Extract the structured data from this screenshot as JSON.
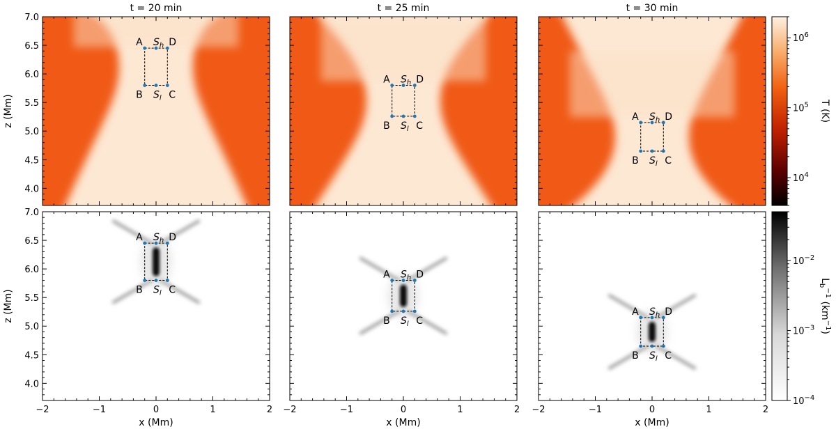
{
  "chart_data": {
    "type": "heatmap",
    "panels": [
      {
        "title": "t =  20 min",
        "field": "T",
        "region": {
          "A": [
            -0.2,
            6.45
          ],
          "B": [
            -0.2,
            5.8
          ],
          "C": [
            0.2,
            5.8
          ],
          "D": [
            0.2,
            6.45
          ],
          "Sh": [
            0.0,
            6.45
          ],
          "Sl": [
            0.0,
            5.8
          ]
        }
      },
      {
        "title": "t =  25 min",
        "field": "T",
        "region": {
          "A": [
            -0.2,
            5.8
          ],
          "B": [
            -0.2,
            5.26
          ],
          "C": [
            0.2,
            5.26
          ],
          "D": [
            0.2,
            5.8
          ],
          "Sh": [
            0.0,
            5.8
          ],
          "Sl": [
            0.0,
            5.26
          ]
        }
      },
      {
        "title": "t =  30 min",
        "field": "T",
        "region": {
          "A": [
            -0.2,
            5.15
          ],
          "B": [
            -0.2,
            4.65
          ],
          "C": [
            0.2,
            4.65
          ],
          "D": [
            0.2,
            5.15
          ],
          "Sh": [
            0.0,
            5.15
          ],
          "Sl": [
            0.0,
            4.65
          ]
        }
      },
      {
        "title": "",
        "field": "Lb",
        "region": {
          "A": [
            -0.2,
            6.45
          ],
          "B": [
            -0.2,
            5.8
          ],
          "C": [
            0.2,
            5.8
          ],
          "D": [
            0.2,
            6.45
          ],
          "Sh": [
            0.0,
            6.45
          ],
          "Sl": [
            0.0,
            5.8
          ]
        }
      },
      {
        "title": "",
        "field": "Lb",
        "region": {
          "A": [
            -0.2,
            5.8
          ],
          "B": [
            -0.2,
            5.26
          ],
          "C": [
            0.2,
            5.26
          ],
          "D": [
            0.2,
            5.8
          ],
          "Sh": [
            0.0,
            5.8
          ],
          "Sl": [
            0.0,
            5.26
          ]
        }
      },
      {
        "title": "",
        "field": "Lb",
        "region": {
          "A": [
            -0.2,
            5.15
          ],
          "B": [
            -0.2,
            4.65
          ],
          "C": [
            0.2,
            4.65
          ],
          "D": [
            0.2,
            5.15
          ],
          "Sh": [
            0.0,
            5.15
          ],
          "Sl": [
            0.0,
            4.65
          ]
        }
      }
    ],
    "point_labels": {
      "A": "A",
      "B": "B",
      "C": "C",
      "D": "D",
      "Sh_main": "S",
      "Sh_sub": "h",
      "Sl_main": "S",
      "Sl_sub": "l"
    },
    "xlabel": "x (Mm)",
    "ylabel": "z (Mm)",
    "xlim": [
      -2,
      2
    ],
    "ylim": [
      3.7,
      7.0
    ],
    "xticks": [
      -2,
      -1,
      0,
      1,
      2
    ],
    "xtick_labels": [
      "−2",
      "−1",
      "0",
      "1",
      "2"
    ],
    "yticks": [
      4.0,
      4.5,
      5.0,
      5.5,
      6.0,
      6.5,
      7.0
    ],
    "ytick_labels": [
      "4.0",
      "4.5",
      "5.0",
      "5.5",
      "6.0",
      "6.5",
      "7.0"
    ],
    "colorbars": [
      {
        "label": "T (K)",
        "scale": "log",
        "range": [
          4000,
          2000000
        ],
        "colormap": "gist_heat",
        "tick_values": [
          10000,
          100000,
          1000000
        ],
        "tick_base": [
          "10",
          "10",
          "10"
        ],
        "tick_exp": [
          "4",
          "5",
          "6"
        ]
      },
      {
        "label_main": "L",
        "label_sub": "b",
        "label_sup": "−1",
        "label_unit": "(km",
        "label_unit_sup": "−1",
        "label_close": ")",
        "scale": "log",
        "range": [
          0.0001,
          0.05
        ],
        "colormap": "gray_r",
        "tick_values": [
          0.0001,
          0.001,
          0.01
        ],
        "tick_base": [
          "10",
          "10",
          "10"
        ],
        "tick_exp": [
          "−4",
          "−3",
          "−2"
        ]
      }
    ],
    "colors": {
      "hot": "#f05a14",
      "plasma": "#fde8d4",
      "sheet": "#111111",
      "marker": "#1f77b4"
    }
  }
}
